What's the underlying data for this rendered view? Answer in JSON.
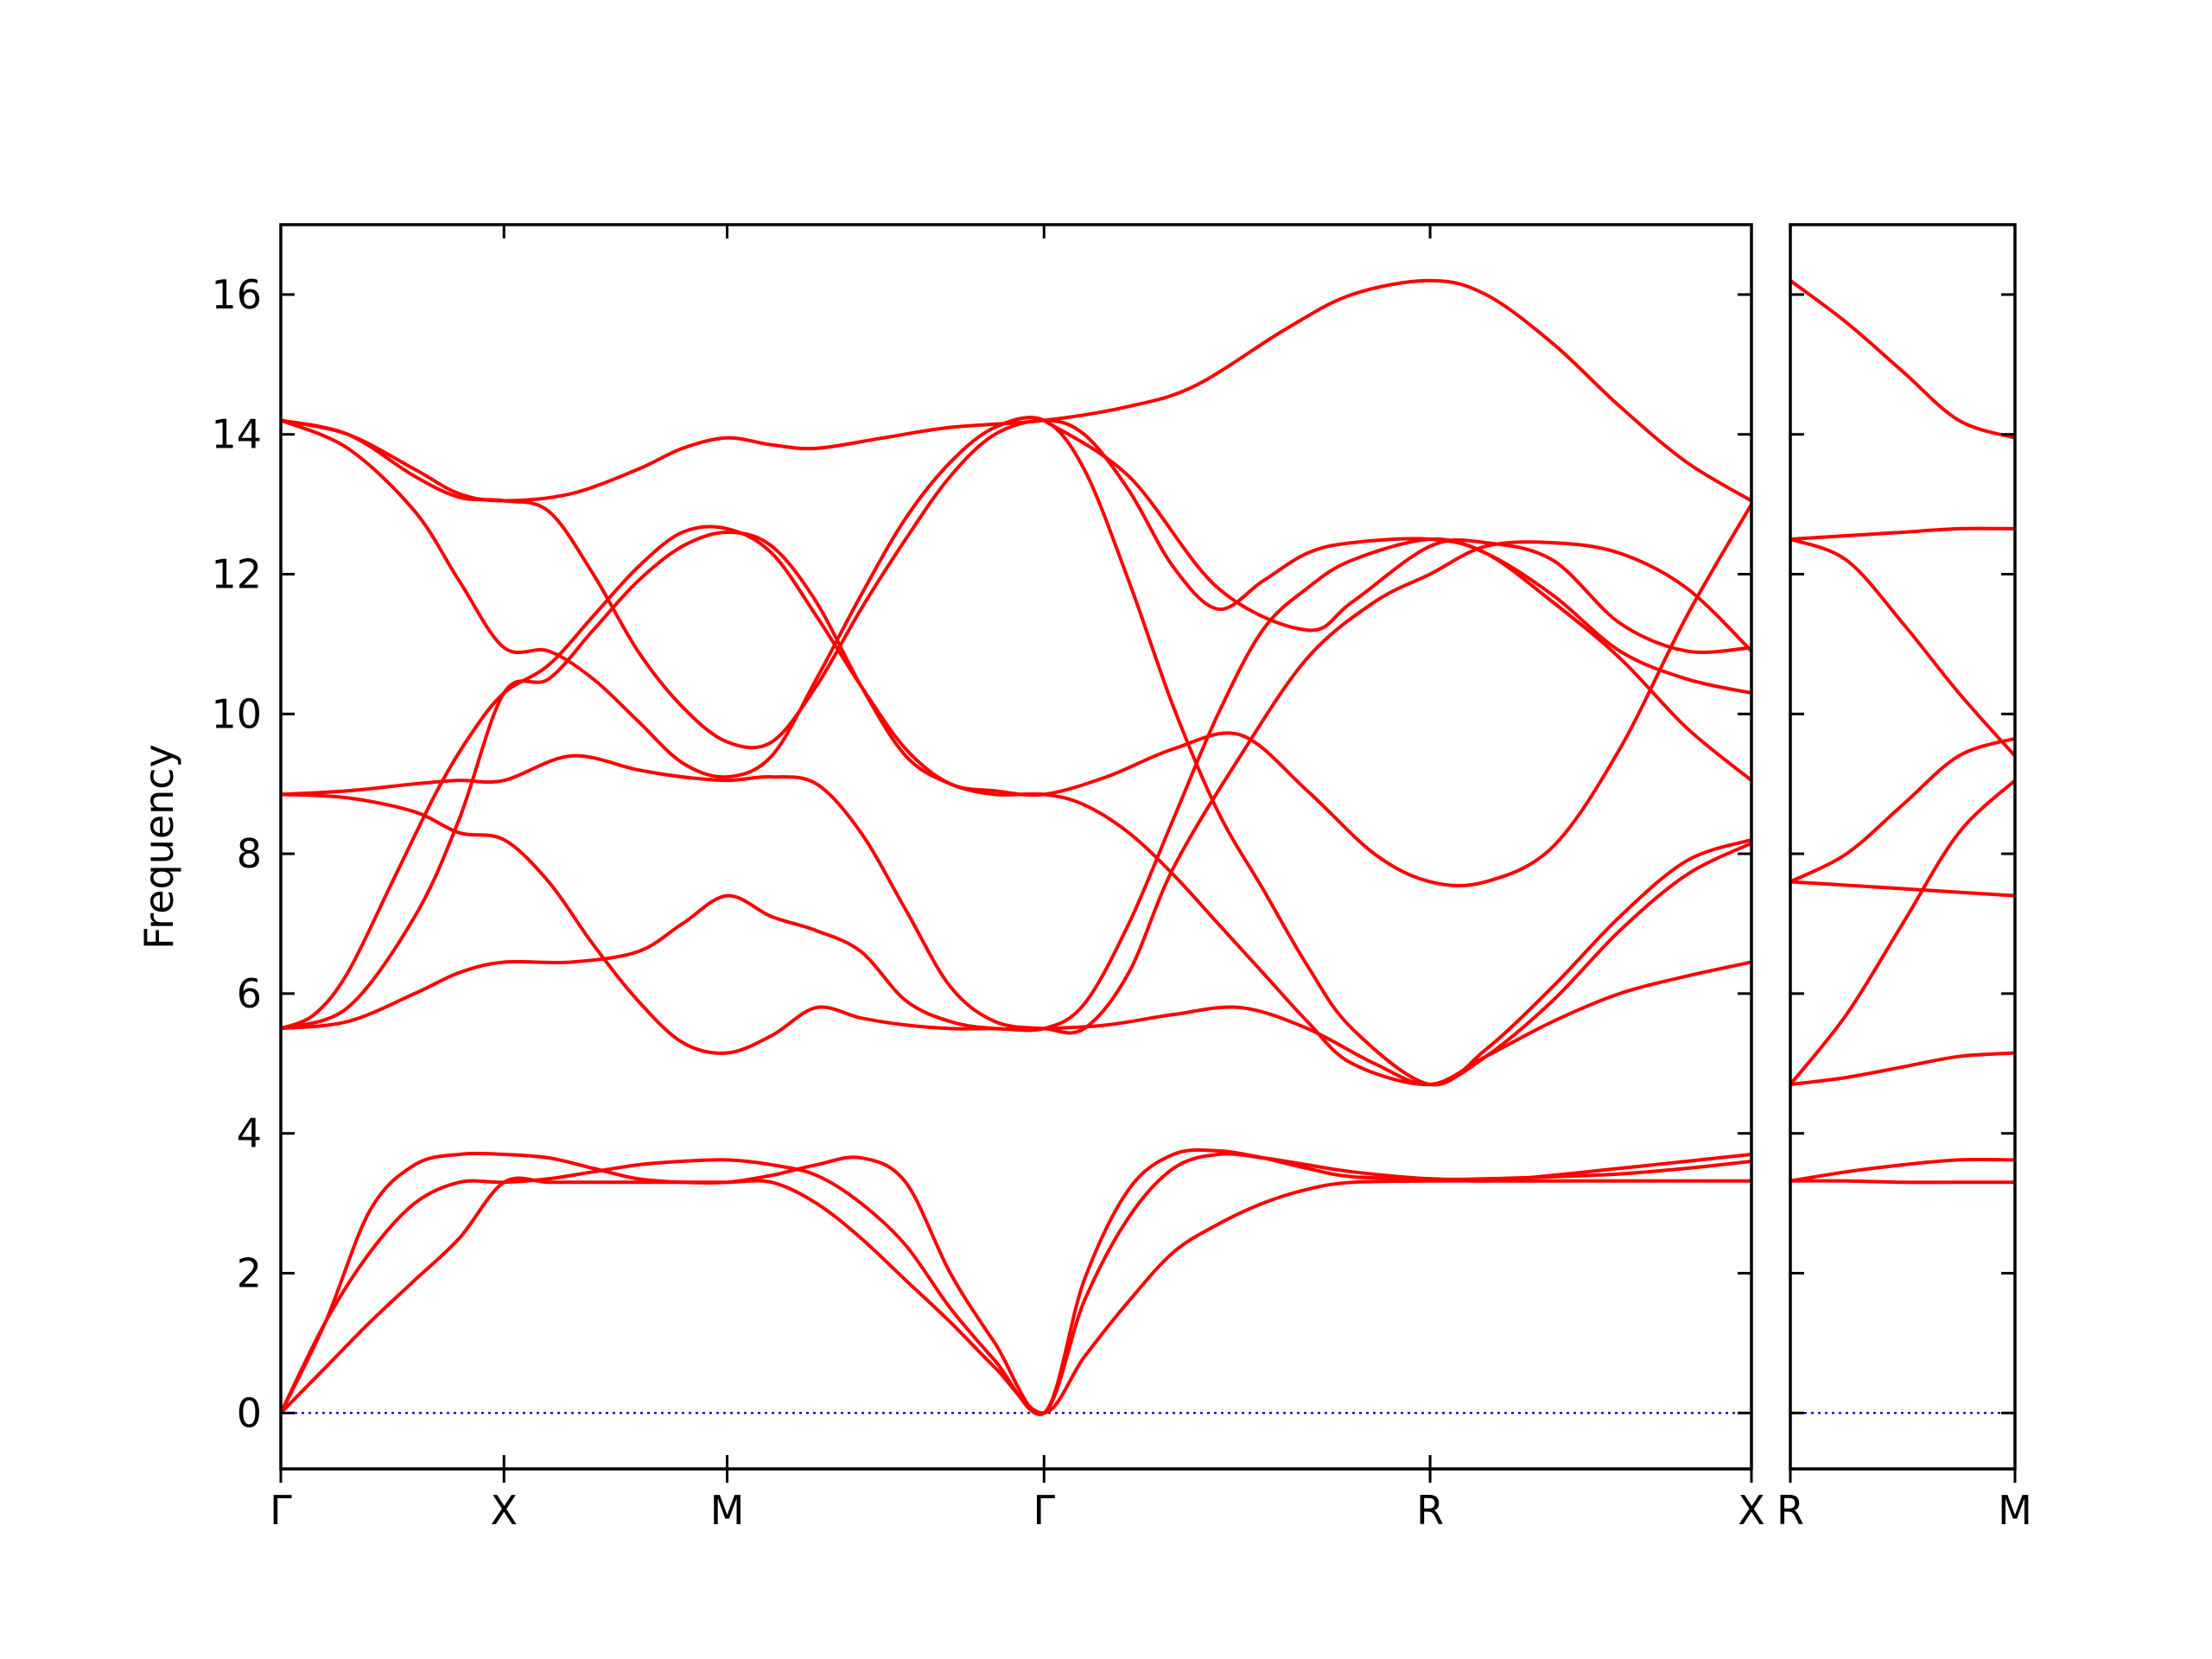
{
  "chart_data": {
    "type": "line",
    "ylabel": "Frequency",
    "ylim": [
      -0.8,
      17.0
    ],
    "yticks": [
      0,
      2,
      4,
      6,
      8,
      10,
      12,
      14,
      16
    ],
    "band_color": "#ff0000",
    "zero_line_color": "#0000cc",
    "panels": [
      {
        "xlim": [
          0,
          6.59
        ],
        "ticks": [
          {
            "label": "Γ",
            "x": 0
          },
          {
            "label": "X",
            "x": 1.0
          },
          {
            "label": "M",
            "x": 2.0
          },
          {
            "label": "Γ",
            "x": 3.42
          },
          {
            "label": "R",
            "x": 5.15
          },
          {
            "label": "X",
            "x": 6.59
          }
        ],
        "series": [
          {
            "x": [
              0,
              0.2,
              0.4,
              0.6,
              0.8,
              1.0,
              1.2,
              1.4,
              1.6,
              1.8,
              2.0,
              2.2,
              2.4,
              2.6,
              2.8,
              3.0,
              3.2,
              3.42,
              3.6,
              3.8,
              4.0,
              4.2,
              4.4,
              4.6,
              4.8,
              5.15,
              5.4,
              5.7,
              6.0,
              6.3,
              6.59
            ],
            "y": [
              0,
              0.65,
              1.3,
              1.9,
              2.5,
              3.3,
              3.3,
              3.3,
              3.3,
              3.3,
              3.3,
              3.3,
              3.0,
              2.5,
              1.9,
              1.3,
              0.65,
              0,
              0.8,
              1.6,
              2.3,
              2.7,
              3.0,
              3.2,
              3.3,
              3.32,
              3.32,
              3.32,
              3.32,
              3.32,
              3.32
            ]
          },
          {
            "x": [
              0,
              0.2,
              0.4,
              0.6,
              0.8,
              1.0,
              1.2,
              1.4,
              1.6,
              1.8,
              2.0,
              2.2,
              2.4,
              2.6,
              2.8,
              3.0,
              3.2,
              3.42,
              3.6,
              3.8,
              4.0,
              4.2,
              4.4,
              4.6,
              4.8,
              5.15,
              5.4,
              5.7,
              6.0,
              6.3,
              6.59
            ],
            "y": [
              0,
              1.3,
              2.3,
              3.0,
              3.3,
              3.3,
              3.35,
              3.45,
              3.55,
              3.6,
              3.62,
              3.55,
              3.4,
              3.0,
              2.4,
              1.5,
              0.75,
              0,
              1.6,
              2.8,
              3.5,
              3.7,
              3.65,
              3.55,
              3.45,
              3.35,
              3.35,
              3.38,
              3.42,
              3.5,
              3.6
            ]
          },
          {
            "x": [
              0,
              0.2,
              0.4,
              0.6,
              0.8,
              1.0,
              1.2,
              1.4,
              1.6,
              1.8,
              2.0,
              2.2,
              2.4,
              2.6,
              2.8,
              3.0,
              3.2,
              3.42,
              3.6,
              3.8,
              4.0,
              4.2,
              4.4,
              4.6,
              4.8,
              5.15,
              5.4,
              5.7,
              6.0,
              6.3,
              6.59
            ],
            "y": [
              0,
              1.3,
              2.9,
              3.55,
              3.7,
              3.7,
              3.65,
              3.5,
              3.35,
              3.3,
              3.3,
              3.4,
              3.55,
              3.65,
              3.3,
              2.0,
              1.0,
              0,
              1.9,
              3.2,
              3.7,
              3.75,
              3.65,
              3.5,
              3.38,
              3.35,
              3.32,
              3.4,
              3.5,
              3.6,
              3.7
            ]
          },
          {
            "x": [
              0,
              0.3,
              0.6,
              0.8,
              1.0,
              1.3,
              1.6,
              1.8,
              2.0,
              2.2,
              2.4,
              2.6,
              2.8,
              3.0,
              3.2,
              3.42,
              3.7,
              4.0,
              4.3,
              4.6,
              4.9,
              5.15,
              5.4,
              5.7,
              6.0,
              6.3,
              6.59
            ],
            "y": [
              5.5,
              5.6,
              6.0,
              6.3,
              6.45,
              6.45,
              6.6,
              7.0,
              7.4,
              7.1,
              6.9,
              6.6,
              5.9,
              5.6,
              5.5,
              5.5,
              5.55,
              5.7,
              5.8,
              5.5,
              5.0,
              4.7,
              5.1,
              5.6,
              6.0,
              6.25,
              6.45
            ]
          },
          {
            "x": [
              0,
              0.15,
              0.3,
              0.5,
              0.7,
              0.85,
              1.0,
              1.2,
              1.4,
              1.6,
              1.8,
              2.0,
              2.2,
              2.4,
              2.6,
              2.8,
              3.0,
              3.2,
              3.42,
              3.7,
              4.0,
              4.3,
              4.6,
              4.9,
              5.15,
              5.4,
              5.7,
              6.0,
              6.3,
              6.59
            ],
            "y": [
              5.5,
              5.7,
              6.3,
              7.6,
              8.9,
              9.7,
              10.3,
              10.7,
              11.4,
              12.1,
              12.6,
              12.65,
              12.3,
              11.4,
              10.4,
              9.5,
              9.0,
              8.9,
              8.85,
              9.1,
              9.5,
              9.7,
              8.9,
              8.0,
              7.6,
              7.6,
              8.1,
              9.5,
              11.4,
              13.0
            ]
          },
          {
            "x": [
              0,
              0.3,
              0.6,
              0.8,
              1.0,
              1.2,
              1.4,
              1.6,
              1.8,
              2.0,
              2.2,
              2.4,
              2.6,
              2.8,
              3.0,
              3.2,
              3.42,
              3.6,
              3.8,
              4.0,
              4.2,
              4.4,
              4.6,
              4.8,
              5.15,
              5.4,
              5.7,
              6.0,
              6.3,
              6.59
            ],
            "y": [
              8.85,
              8.8,
              8.6,
              8.3,
              8.2,
              7.6,
              6.7,
              5.9,
              5.3,
              5.15,
              5.4,
              5.8,
              5.65,
              5.55,
              5.5,
              5.5,
              5.5,
              5.85,
              7.0,
              8.5,
              10.0,
              11.2,
              11.8,
              12.2,
              12.5,
              12.3,
              11.7,
              10.9,
              10.5,
              10.3
            ]
          },
          {
            "x": [
              0,
              0.3,
              0.6,
              0.8,
              1.0,
              1.3,
              1.6,
              1.8,
              2.0,
              2.2,
              2.4,
              2.6,
              2.8,
              3.0,
              3.2,
              3.42,
              3.6,
              3.8,
              4.0,
              4.3,
              4.6,
              4.9,
              5.15,
              5.4,
              5.7,
              6.0,
              6.3,
              6.59
            ],
            "y": [
              8.85,
              8.9,
              9.0,
              9.05,
              9.05,
              9.4,
              9.2,
              9.1,
              9.05,
              9.1,
              9.0,
              8.3,
              7.2,
              6.1,
              5.6,
              5.5,
              5.5,
              6.3,
              7.8,
              9.4,
              10.8,
              11.6,
              12.0,
              12.4,
              12.45,
              12.3,
              11.8,
              10.9
            ]
          },
          {
            "x": [
              0,
              0.3,
              0.6,
              0.8,
              1.0,
              1.2,
              1.4,
              1.6,
              1.8,
              2.0,
              2.2,
              2.4,
              2.6,
              2.8,
              3.0,
              3.2,
              3.42,
              3.6,
              3.8,
              4.0,
              4.2,
              4.4,
              4.6,
              4.8,
              5.15,
              5.4,
              5.7,
              6.0,
              6.3,
              6.59
            ],
            "y": [
              5.5,
              5.8,
              7.1,
              8.5,
              10.3,
              10.5,
              11.2,
              11.9,
              12.4,
              12.6,
              12.4,
              11.6,
              10.4,
              9.4,
              9.0,
              8.85,
              8.85,
              8.7,
              8.3,
              7.7,
              7.0,
              6.3,
              5.6,
              5.0,
              4.7,
              5.1,
              5.9,
              6.9,
              7.7,
              8.15
            ]
          },
          {
            "x": [
              0,
              0.3,
              0.6,
              0.8,
              1.0,
              1.2,
              1.4,
              1.6,
              1.8,
              2.0,
              2.2,
              2.4,
              2.6,
              2.8,
              3.0,
              3.2,
              3.42,
              3.6,
              3.8,
              4.0,
              4.2,
              4.4,
              4.6,
              4.8,
              5.15,
              5.4,
              5.7,
              6.0,
              6.3,
              6.59
            ],
            "y": [
              14.2,
              13.8,
              12.9,
              11.9,
              10.95,
              10.9,
              10.5,
              9.9,
              9.3,
              9.1,
              9.4,
              10.5,
              11.7,
              12.8,
              13.6,
              14.1,
              14.2,
              13.5,
              11.9,
              10.1,
              8.6,
              7.5,
              6.4,
              5.5,
              4.7,
              5.2,
              6.1,
              7.1,
              7.9,
              8.2
            ]
          },
          {
            "x": [
              0,
              0.3,
              0.6,
              0.8,
              1.0,
              1.2,
              1.4,
              1.6,
              1.8,
              2.0,
              2.2,
              2.4,
              2.6,
              2.8,
              3.0,
              3.2,
              3.42,
              3.6,
              3.8,
              4.0,
              4.2,
              4.4,
              4.6,
              4.8,
              5.15,
              5.4,
              5.7,
              6.0,
              6.3,
              6.59
            ],
            "y": [
              14.2,
              14.0,
              13.4,
              13.1,
              13.05,
              12.9,
              12.0,
              10.9,
              10.1,
              9.6,
              9.6,
              10.4,
              11.5,
              12.5,
              13.4,
              14.0,
              14.2,
              14.0,
              13.2,
              12.1,
              11.5,
              11.9,
              12.3,
              12.45,
              12.5,
              12.3,
              11.6,
              10.8,
              9.8,
              9.05
            ]
          },
          {
            "x": [
              0,
              0.3,
              0.6,
              0.8,
              1.0,
              1.3,
              1.6,
              1.8,
              2.0,
              2.2,
              2.4,
              2.7,
              3.0,
              3.42,
              3.8,
              4.1,
              4.5,
              4.8,
              5.15,
              5.4,
              5.7,
              6.0,
              6.3,
              6.59
            ],
            "y": [
              14.2,
              14.0,
              13.5,
              13.15,
              13.05,
              13.15,
              13.5,
              13.8,
              13.95,
              13.85,
              13.8,
              13.95,
              14.1,
              14.2,
              14.4,
              14.7,
              15.5,
              16.0,
              16.2,
              16.0,
              15.3,
              14.4,
              13.6,
              13.05
            ]
          },
          {
            "x": [
              3.42,
              3.8,
              4.2,
              4.6,
              4.8,
              5.15,
              5.4,
              5.7,
              6.0,
              6.3,
              6.59
            ],
            "y": [
              14.2,
              13.4,
              11.8,
              11.2,
              11.6,
              12.4,
              12.45,
              12.2,
              11.3,
              10.9,
              10.95
            ]
          }
        ]
      },
      {
        "xlim": [
          0,
          1.0
        ],
        "ticks": [
          {
            "label": "R",
            "x": 0
          },
          {
            "label": "M",
            "x": 1.0
          }
        ],
        "series": [
          {
            "x": [
              0,
              0.25,
              0.5,
              0.75,
              1.0
            ],
            "y": [
              16.2,
              15.6,
              14.9,
              14.2,
              13.95
            ]
          },
          {
            "x": [
              0,
              0.25,
              0.5,
              0.75,
              1.0
            ],
            "y": [
              12.5,
              12.55,
              12.6,
              12.65,
              12.65
            ]
          },
          {
            "x": [
              0,
              0.25,
              0.5,
              0.75,
              1.0
            ],
            "y": [
              12.5,
              12.2,
              11.3,
              10.3,
              9.4
            ]
          },
          {
            "x": [
              0,
              0.25,
              0.5,
              0.75,
              1.0
            ],
            "y": [
              7.6,
              8.0,
              8.7,
              9.4,
              9.65
            ]
          },
          {
            "x": [
              0,
              0.25,
              0.5,
              0.75,
              1.0
            ],
            "y": [
              7.6,
              7.55,
              7.5,
              7.45,
              7.4
            ]
          },
          {
            "x": [
              0,
              0.25,
              0.5,
              0.75,
              1.0
            ],
            "y": [
              4.7,
              5.7,
              7.0,
              8.3,
              9.05
            ]
          },
          {
            "x": [
              0,
              0.25,
              0.5,
              0.75,
              1.0
            ],
            "y": [
              4.7,
              4.8,
              4.95,
              5.1,
              5.15
            ]
          },
          {
            "x": [
              0,
              0.25,
              0.5,
              0.75,
              1.0
            ],
            "y": [
              3.32,
              3.45,
              3.55,
              3.62,
              3.62
            ]
          },
          {
            "x": [
              0,
              0.25,
              0.5,
              0.75,
              1.0
            ],
            "y": [
              3.32,
              3.32,
              3.3,
              3.3,
              3.3
            ]
          }
        ]
      }
    ]
  }
}
